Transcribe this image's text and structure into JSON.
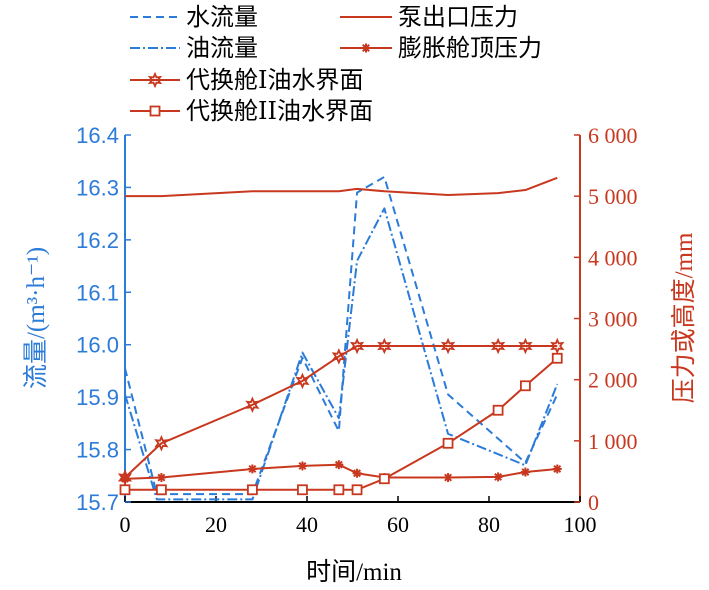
{
  "chart_data": {
    "type": "line",
    "xlabel": "时间/min",
    "ylabel_left": "流量/(m³·h⁻¹)",
    "ylabel_right": "压力或高度/mm",
    "xlim": [
      0,
      100
    ],
    "ylim_left": [
      15.7,
      16.4
    ],
    "ylim_right": [
      0,
      6000
    ],
    "x_ticks": [
      "0",
      "20",
      "40",
      "60",
      "80",
      "100"
    ],
    "y_left_ticks": [
      "15.7",
      "15.8",
      "15.9",
      "16.0",
      "16.1",
      "16.2",
      "16.3",
      "16.4"
    ],
    "y_right_ticks": [
      "0",
      "1 000",
      "2 000",
      "3 000",
      "4 000",
      "5 000",
      "6 000"
    ],
    "colors": {
      "blue": "#2b7bd8",
      "red": "#c8381f",
      "axis": "#000000"
    },
    "series": [
      {
        "name": "水流量",
        "axis": "left",
        "color": "#2b7bd8",
        "dash": "8,5",
        "marker": "none",
        "x": [
          0,
          7,
          28,
          39,
          47,
          51,
          57,
          71,
          88,
          95
        ],
        "y": [
          15.955,
          15.715,
          15.715,
          15.975,
          15.835,
          16.29,
          16.32,
          15.905,
          15.775,
          15.905
        ]
      },
      {
        "name": "油流量",
        "axis": "left",
        "color": "#2b7bd8",
        "dash": "10,3,2,3",
        "marker": "none",
        "x": [
          0,
          7,
          28,
          39,
          47,
          51,
          57,
          71,
          88,
          95
        ],
        "y": [
          15.905,
          15.705,
          15.705,
          15.985,
          15.86,
          16.16,
          16.26,
          15.83,
          15.77,
          15.925
        ]
      },
      {
        "name": "泵出口压力",
        "axis": "right",
        "color": "#c8381f",
        "dash": "",
        "marker": "none",
        "x": [
          0,
          8,
          28,
          39,
          47,
          51,
          57,
          71,
          82,
          88,
          95
        ],
        "y": [
          5000,
          5000,
          5080,
          5080,
          5080,
          5120,
          5080,
          5020,
          5050,
          5100,
          5300
        ]
      },
      {
        "name": "膨胀舱顶压力",
        "axis": "right",
        "color": "#c8381f",
        "dash": "",
        "marker": "star",
        "x": [
          0,
          8,
          28,
          39,
          47,
          51,
          57,
          71,
          82,
          88,
          95
        ],
        "y": [
          380,
          400,
          540,
          590,
          610,
          470,
          400,
          400,
          410,
          490,
          540
        ]
      },
      {
        "name": "代换舱I油水界面",
        "axis": "right",
        "color": "#c8381f",
        "dash": "",
        "marker": "hexstar",
        "x": [
          0,
          8,
          28,
          39,
          47,
          51,
          57,
          71,
          82,
          88,
          95
        ],
        "y": [
          400,
          960,
          1590,
          1980,
          2380,
          2550,
          2550,
          2550,
          2550,
          2550,
          2550
        ]
      },
      {
        "name": "代换舱II油水界面",
        "axis": "right",
        "color": "#c8381f",
        "dash": "",
        "marker": "square",
        "x": [
          0,
          8,
          28,
          39,
          47,
          51,
          57,
          71,
          82,
          88,
          95
        ],
        "y": [
          200,
          200,
          200,
          200,
          200,
          200,
          380,
          960,
          1500,
          1900,
          2350
        ]
      }
    ]
  }
}
